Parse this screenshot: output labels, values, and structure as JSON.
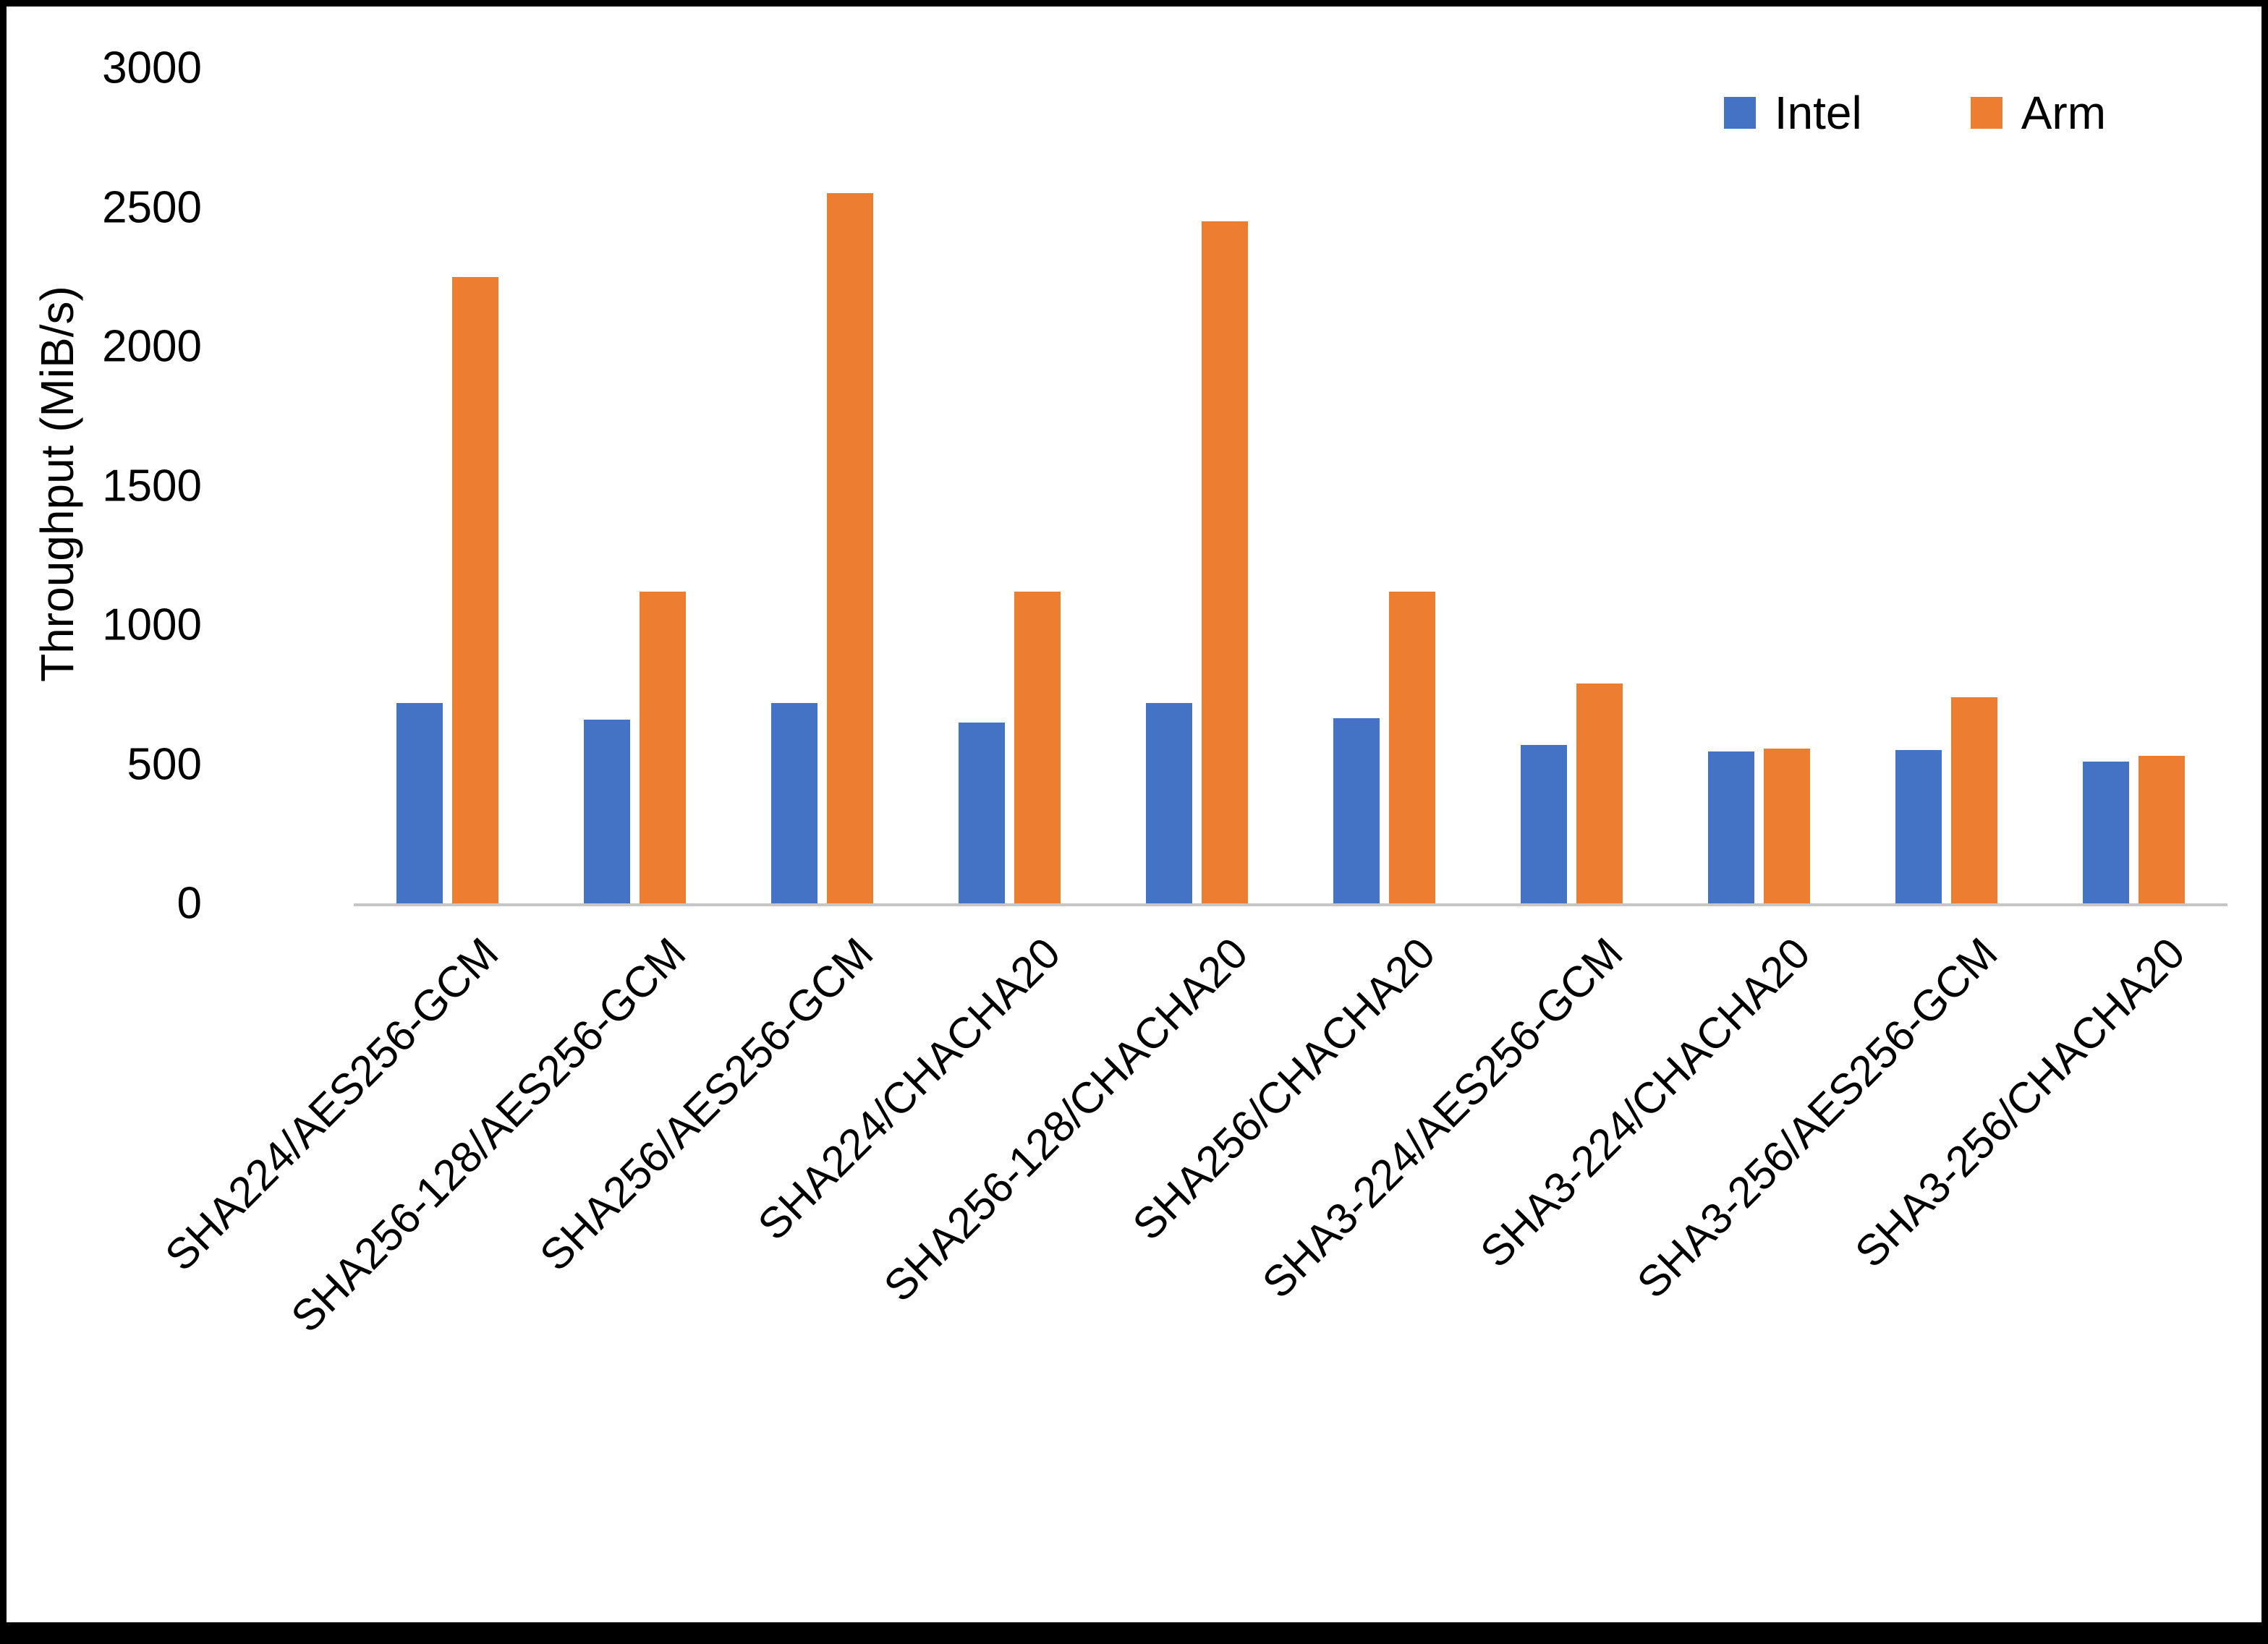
{
  "chart_data": {
    "type": "bar",
    "title": "",
    "xlabel": "",
    "ylabel": "Throughput (MiB/s)",
    "ylim": [
      0,
      3000
    ],
    "yticks": [
      0,
      500,
      1000,
      1500,
      2000,
      2500,
      3000
    ],
    "grid": false,
    "legend_position": "top-right",
    "categories": [
      "SHA224/AES256-GCM",
      "SHA256-128/AES256-GCM",
      "SHA256/AES256-GCM",
      "SHA224/CHACHA20",
      "SHA256-128/CHACHA20",
      "SHA256/CHACHA20",
      "SHA3-224/AES256-GCM",
      "SHA3-224/CHACHA20",
      "SHA3-256/AES256-GCM",
      "SHA3-256/CHACHA20"
    ],
    "series": [
      {
        "name": "Intel",
        "color": "#4472C4",
        "values": [
          720,
          660,
          720,
          650,
          720,
          665,
          570,
          545,
          550,
          510
        ]
      },
      {
        "name": "Arm",
        "color": "#ED7D31",
        "values": [
          2250,
          1120,
          2550,
          1120,
          2450,
          1120,
          790,
          555,
          740,
          530
        ]
      }
    ]
  }
}
